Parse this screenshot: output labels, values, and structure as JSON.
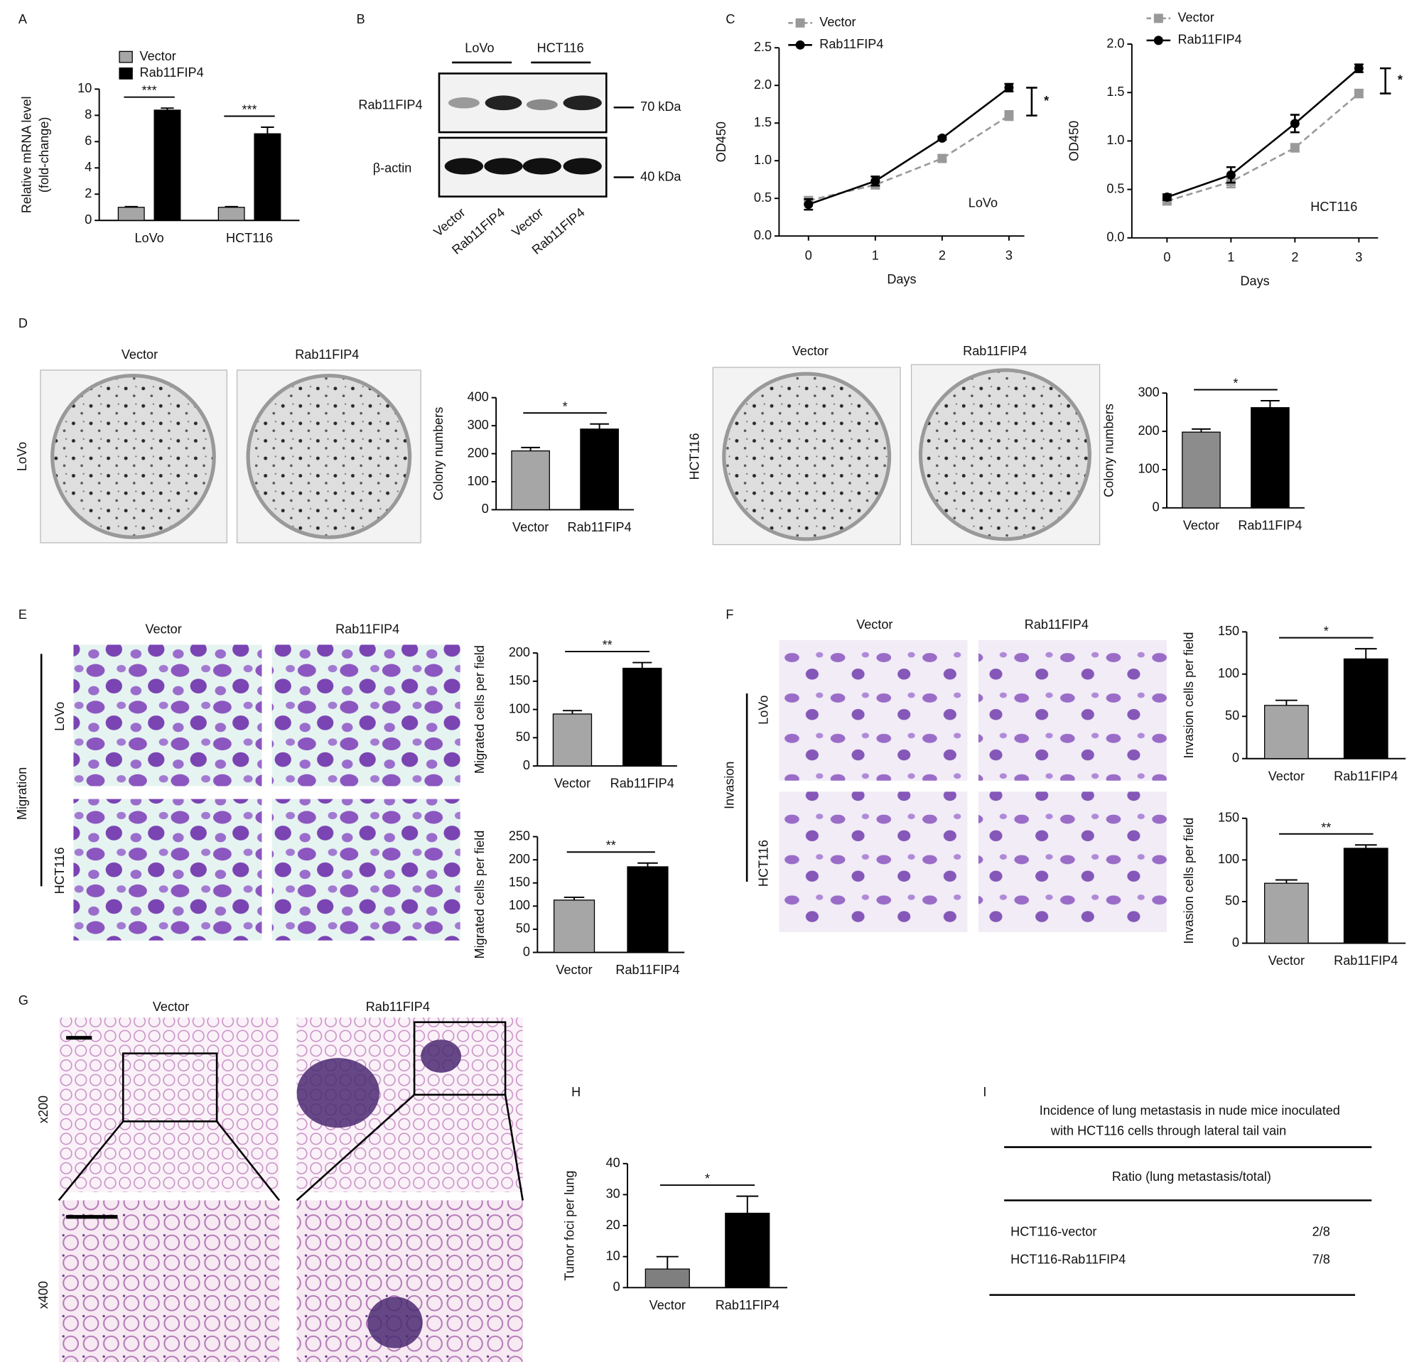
{
  "figure": {
    "panel_letters": [
      "A",
      "B",
      "C",
      "D",
      "E",
      "F",
      "G",
      "H",
      "I"
    ],
    "blot": {
      "groups": [
        "LoVo",
        "HCT116"
      ],
      "proteins": [
        "Rab11FIP4",
        "β-actin"
      ],
      "markers": [
        "70 kDa",
        "40 kDa"
      ],
      "lanes": [
        "Vector",
        "Rab11FIP4",
        "Vector",
        "Rab11FIP4"
      ]
    },
    "panel_D": {
      "lovo_columns": [
        "Vector",
        "Rab11FIP4"
      ],
      "lovo_row": "LoVo",
      "hct_columns": [
        "Vector",
        "Rab11FIP4"
      ],
      "hct_row": "HCT116"
    },
    "panel_E": {
      "columns": [
        "Vector",
        "Rab11FIP4"
      ],
      "group": "Migration",
      "rows": [
        "LoVo",
        "HCT116"
      ]
    },
    "panel_F": {
      "columns": [
        "Vector",
        "Rab11FIP4"
      ],
      "group": "Invasion",
      "rows": [
        "LoVo",
        "HCT116"
      ]
    },
    "panel_G": {
      "columns": [
        "Vector",
        "Rab11FIP4"
      ],
      "rows": [
        "x200",
        "x400"
      ]
    },
    "panel_I": {
      "title": [
        "Incidence of lung metastasis in nude mice inoculated",
        "with HCT116 cells through lateral tail vain"
      ],
      "header": "Ratio  (lung metastasis/total)",
      "rows": [
        [
          "HCT116-vector",
          "2/8"
        ],
        [
          "HCT116-Rab11FIP4",
          "7/8"
        ]
      ]
    }
  },
  "chart_data": [
    {
      "type": "bar",
      "ylabel": [
        "Relative mRNA level",
        "(fold-change)"
      ],
      "categories": [
        "LoVo",
        "HCT116"
      ],
      "series": [
        {
          "name": "Vector",
          "color": "#a6a6a6",
          "values": [
            1,
            1
          ],
          "errors": [
            0.05,
            0.05
          ]
        },
        {
          "name": "Rab11FIP4",
          "color": "#000000",
          "values": [
            8.4,
            6.6
          ],
          "errors": [
            0.15,
            0.5
          ]
        }
      ],
      "significance": [
        "***",
        "***"
      ],
      "ylim": [
        0,
        10
      ],
      "yticks": [
        0,
        2,
        4,
        6,
        8,
        10
      ]
    },
    {
      "type": "line",
      "label": "LoVo",
      "xlabel": "Days",
      "ylabel": "OD450",
      "x": [
        0,
        1,
        2,
        3
      ],
      "xlim": [
        -0.44,
        3.23
      ],
      "xticks": [
        0,
        1,
        2,
        3
      ],
      "series": [
        {
          "name": "Vector",
          "color": "#999999",
          "marker": "square",
          "dashed": true,
          "values": [
            0.47,
            0.68,
            1.03,
            1.6
          ],
          "errors": [
            0.05,
            0.05,
            0.04,
            0.06
          ]
        },
        {
          "name": "Rab11FIP4",
          "color": "#000000",
          "marker": "circle",
          "dashed": false,
          "values": [
            0.42,
            0.73,
            1.3,
            1.97
          ],
          "errors": [
            0.07,
            0.06,
            0.02,
            0.05
          ]
        }
      ],
      "significance": "*",
      "ylim": [
        0,
        2.5
      ],
      "yticks": [
        {
          "value": 0,
          "label": "0.0"
        },
        0.5,
        {
          "value": 1,
          "label": "1.0"
        },
        1.5,
        {
          "value": 2,
          "label": "2.0"
        },
        2.5
      ]
    },
    {
      "type": "line",
      "label": "HCT116",
      "xlabel": "Days",
      "ylabel": "OD450",
      "x": [
        0,
        1,
        2,
        3
      ],
      "xlim": [
        -0.55,
        3.3
      ],
      "xticks": [
        0,
        1,
        2,
        3
      ],
      "series": [
        {
          "name": "Vector",
          "color": "#999999",
          "marker": "square",
          "dashed": true,
          "values": [
            0.38,
            0.58,
            0.93,
            1.49
          ],
          "errors": [
            0.03,
            0.06,
            0.04,
            0.04
          ]
        },
        {
          "name": "Rab11FIP4",
          "color": "#000000",
          "marker": "circle",
          "dashed": false,
          "values": [
            0.42,
            0.65,
            1.18,
            1.75
          ],
          "errors": [
            0.03,
            0.08,
            0.09,
            0.04
          ]
        }
      ],
      "significance": "*",
      "ylim": [
        0,
        2
      ],
      "yticks": [
        {
          "value": 0,
          "label": "0.0"
        },
        0.5,
        {
          "value": 1,
          "label": "1.0"
        },
        1.5,
        {
          "value": 2,
          "label": "2.0"
        }
      ]
    },
    {
      "type": "bar",
      "ylabel": "Colony numbers",
      "categories": [
        "Vector",
        "Rab11FIP4"
      ],
      "values": [
        210,
        288
      ],
      "errors": [
        12,
        18
      ],
      "colors": [
        "#a6a6a6",
        "#000000"
      ],
      "significance": "*",
      "ylim": [
        0,
        400
      ],
      "yticks": [
        0,
        100,
        200,
        300,
        400
      ]
    },
    {
      "type": "bar",
      "ylabel": "Colony numbers",
      "categories": [
        "Vector",
        "Rab11FIP4"
      ],
      "values": [
        198,
        262
      ],
      "errors": [
        8,
        18
      ],
      "colors": [
        "#8c8c8c",
        "#000000"
      ],
      "significance": "*",
      "ylim": [
        0,
        300
      ],
      "yticks": [
        0,
        100,
        200,
        300
      ]
    },
    {
      "type": "bar",
      "ylabel": "Migrated cells per field",
      "categories": [
        "Vector",
        "Rab11FIP4"
      ],
      "values": [
        92,
        173
      ],
      "errors": [
        6,
        10
      ],
      "colors": [
        "#a6a6a6",
        "#000000"
      ],
      "significance": "**",
      "ylim": [
        0,
        200
      ],
      "yticks": [
        0,
        50,
        100,
        150,
        200
      ]
    },
    {
      "type": "bar",
      "ylabel": "Migrated cells per field",
      "categories": [
        "Vector",
        "Rab11FIP4"
      ],
      "values": [
        113,
        185
      ],
      "errors": [
        6,
        8
      ],
      "colors": [
        "#a6a6a6",
        "#000000"
      ],
      "significance": "**",
      "ylim": [
        0,
        250
      ],
      "yticks": [
        0,
        50,
        100,
        150,
        200,
        250
      ]
    },
    {
      "type": "bar",
      "ylabel": "Invasion cells per field",
      "categories": [
        "Vector",
        "Rab11FIP4"
      ],
      "values": [
        63,
        118
      ],
      "errors": [
        6,
        12
      ],
      "colors": [
        "#a6a6a6",
        "#000000"
      ],
      "significance": "*",
      "ylim": [
        0,
        150
      ],
      "yticks": [
        0,
        50,
        100,
        150
      ]
    },
    {
      "type": "bar",
      "ylabel": "Invasion cells per field",
      "categories": [
        "Vector",
        "Rab11FIP4"
      ],
      "values": [
        72,
        114
      ],
      "errors": [
        4,
        4
      ],
      "colors": [
        "#a6a6a6",
        "#000000"
      ],
      "significance": "**",
      "ylim": [
        0,
        150
      ],
      "yticks": [
        0,
        50,
        100,
        150
      ]
    },
    {
      "type": "bar",
      "ylabel": "Tumor foci per lung",
      "categories": [
        "Vector",
        "Rab11FIP4"
      ],
      "values": [
        6,
        24
      ],
      "errors": [
        4,
        5.5
      ],
      "colors": [
        "#7f7f7f",
        "#000000"
      ],
      "significance": "*",
      "ylim": [
        0,
        40
      ],
      "yticks": [
        0,
        10,
        20,
        30,
        40
      ]
    }
  ]
}
